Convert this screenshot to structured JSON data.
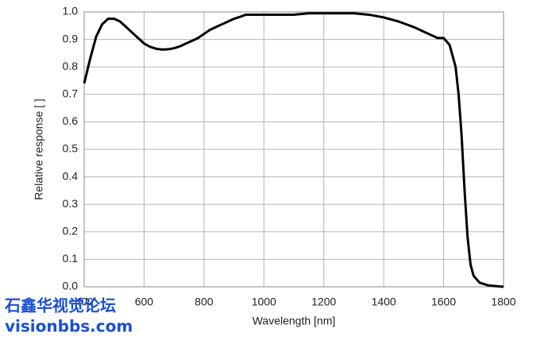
{
  "chart_data": {
    "type": "line",
    "x_label": "Wavelength [nm]",
    "y_label": "Relative response [ ]",
    "x": [
      400,
      420,
      440,
      460,
      480,
      500,
      520,
      540,
      560,
      580,
      600,
      620,
      640,
      660,
      680,
      700,
      720,
      740,
      760,
      780,
      800,
      820,
      840,
      860,
      880,
      900,
      920,
      940,
      960,
      980,
      1000,
      1050,
      1100,
      1150,
      1200,
      1250,
      1300,
      1350,
      1400,
      1450,
      1500,
      1550,
      1580,
      1600,
      1620,
      1640,
      1650,
      1660,
      1670,
      1680,
      1690,
      1700,
      1720,
      1750,
      1800
    ],
    "series": [
      {
        "color": "#000000",
        "values": [
          0.74,
          0.83,
          0.91,
          0.955,
          0.975,
          0.975,
          0.965,
          0.945,
          0.925,
          0.905,
          0.885,
          0.873,
          0.866,
          0.863,
          0.864,
          0.868,
          0.875,
          0.885,
          0.895,
          0.905,
          0.92,
          0.935,
          0.945,
          0.955,
          0.965,
          0.975,
          0.982,
          0.99,
          0.99,
          0.99,
          0.99,
          0.99,
          0.99,
          0.995,
          0.995,
          0.995,
          0.995,
          0.99,
          0.98,
          0.965,
          0.945,
          0.92,
          0.905,
          0.905,
          0.88,
          0.8,
          0.7,
          0.55,
          0.35,
          0.18,
          0.08,
          0.04,
          0.015,
          0.005,
          0
        ]
      }
    ],
    "xlim": [
      400,
      1800
    ],
    "xticks": [
      400,
      600,
      800,
      1000,
      1200,
      1400,
      1600,
      1800
    ],
    "ylim": [
      0,
      1
    ],
    "yticks": [
      {
        "value": 0,
        "label": "0.0"
      },
      0.1,
      0.2,
      0.3,
      0.4,
      0.5,
      0.6,
      0.7,
      0.8,
      0.9,
      {
        "value": 1,
        "label": "1.0"
      }
    ],
    "grid": true,
    "annotations": [
      "石鑫华视觉论坛",
      "visionbbs.com"
    ]
  }
}
